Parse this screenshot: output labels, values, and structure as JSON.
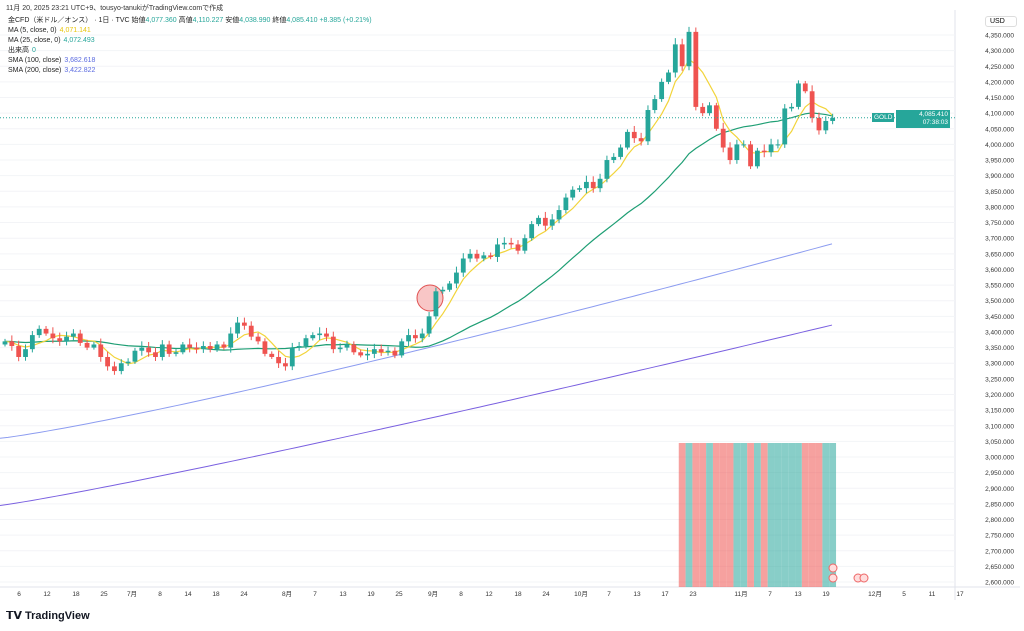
{
  "header": {
    "created": "11月 20, 2025 23:21 UTC+9、tousyo-tanukiがTradingView.comで作成"
  },
  "legend": {
    "symbol": "金CFD（米ドル／オンス） · 1日 · TVC",
    "open_label": "始値",
    "open": "4,077.360",
    "high_label": "高値",
    "high": "4,110.227",
    "low_label": "安値",
    "low": "4,038.990",
    "close_label": "終値",
    "close": "4,085.410",
    "change": "+8.385 (+0.21%)",
    "ma5_label": "MA (5, close, 0)",
    "ma5": "4,071.141",
    "ma25_label": "MA (25, close, 0)",
    "ma25": "4,072.493",
    "vol_label": "出来高",
    "vol": "0",
    "sma100_label": "SMA (100, close)",
    "sma100": "3,682.618",
    "sma200_label": "SMA (200, close)",
    "sma200": "3,422.822"
  },
  "axis": {
    "currency": "USD",
    "price_tag_symbol": "GOLD",
    "price_tag_value": "4,085.410",
    "countdown": "07:38:03",
    "y_ticks": [
      4350,
      4300,
      4250,
      4200,
      4150,
      4100,
      4050,
      4000,
      3950,
      3900,
      3850,
      3800,
      3750,
      3700,
      3650,
      3600,
      3550,
      3500,
      3450,
      3400,
      3350,
      3300,
      3250,
      3200,
      3150,
      3100,
      3050,
      3000,
      2950,
      2900,
      2850,
      2800,
      2750,
      2700,
      2650,
      2600
    ],
    "x_ticks": [
      [
        "6",
        19
      ],
      [
        "12",
        47
      ],
      [
        "18",
        76
      ],
      [
        "25",
        104
      ],
      [
        "7月",
        132
      ],
      [
        "8",
        160
      ],
      [
        "14",
        188
      ],
      [
        "18",
        216
      ],
      [
        "24",
        244
      ],
      [
        "8月",
        287
      ],
      [
        "7",
        315
      ],
      [
        "13",
        343
      ],
      [
        "19",
        371
      ],
      [
        "25",
        399
      ],
      [
        "9月",
        433
      ],
      [
        "8",
        461
      ],
      [
        "12",
        489
      ],
      [
        "18",
        518
      ],
      [
        "24",
        546
      ],
      [
        "10月",
        581
      ],
      [
        "7",
        609
      ],
      [
        "13",
        637
      ],
      [
        "17",
        665
      ],
      [
        "23",
        693
      ],
      [
        "11月",
        741
      ],
      [
        "7",
        770
      ],
      [
        "13",
        798
      ],
      [
        "19",
        826
      ],
      [
        "12月",
        875
      ],
      [
        "5",
        904
      ],
      [
        "11",
        932
      ],
      [
        "17",
        960
      ]
    ]
  },
  "colors": {
    "up": "#26a69a",
    "down": "#ef5350",
    "ma5": "#f2d43b",
    "ma25": "#1e9e74",
    "sma100": "#8c9cf0",
    "sma200": "#7a60e0"
  },
  "chart_data": {
    "type": "candlestick",
    "open0": 3360,
    "closes": [
      3370,
      3355,
      3320,
      3345,
      3390,
      3410,
      3395,
      3380,
      3370,
      3385,
      3395,
      3365,
      3350,
      3360,
      3320,
      3290,
      3275,
      3300,
      3305,
      3340,
      3350,
      3335,
      3320,
      3360,
      3330,
      3335,
      3360,
      3350,
      3345,
      3355,
      3345,
      3360,
      3350,
      3395,
      3430,
      3420,
      3385,
      3370,
      3330,
      3320,
      3300,
      3290,
      3350,
      3355,
      3380,
      3390,
      3395,
      3385,
      3345,
      3350,
      3360,
      3335,
      3325,
      3330,
      3345,
      3335,
      3340,
      3325,
      3370,
      3390,
      3380,
      3395,
      3450,
      3530,
      3535,
      3555,
      3590,
      3635,
      3650,
      3635,
      3645,
      3640,
      3680,
      3685,
      3680,
      3660,
      3700,
      3745,
      3765,
      3740,
      3760,
      3790,
      3830,
      3855,
      3860,
      3880,
      3860,
      3890,
      3950,
      3960,
      3990,
      4040,
      4020,
      4010,
      4110,
      4145,
      4200,
      4230,
      4320,
      4250,
      4360,
      4120,
      4100,
      4125,
      4050,
      3990,
      3950,
      4000,
      4000,
      3930,
      3980,
      3975,
      4000,
      4000,
      4115,
      4120,
      4195,
      4170,
      4085,
      4045,
      4075,
      4085
    ],
    "sma100_range": [
      3060,
      3682.618
    ],
    "sma200_range": [
      2845,
      3422.822
    ],
    "volume_start_index": 99,
    "brand": "TradingView"
  }
}
